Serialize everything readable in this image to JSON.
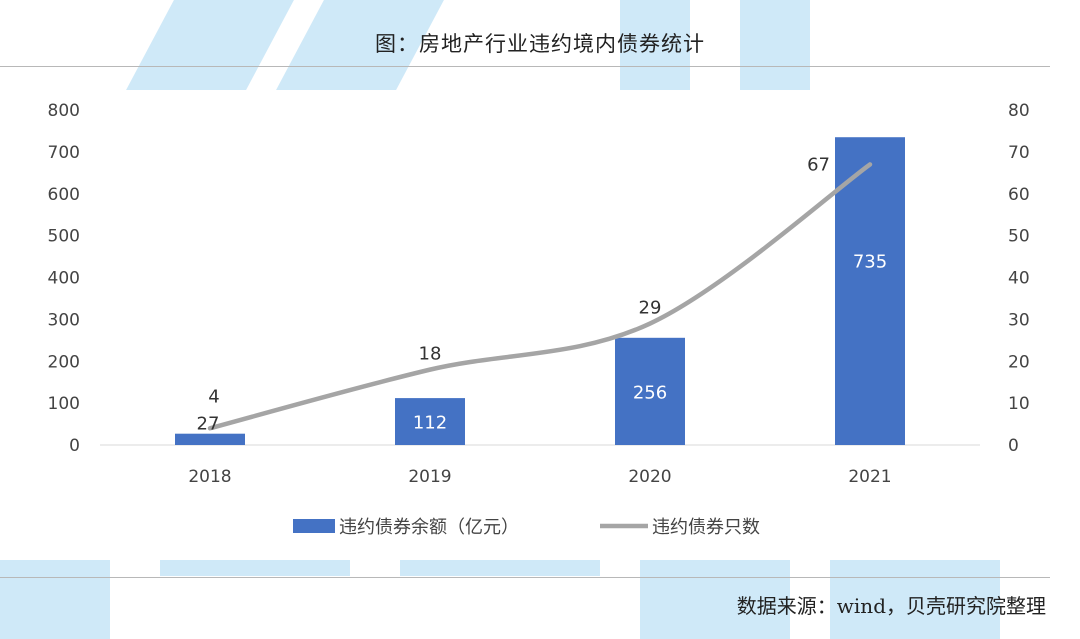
{
  "title": "图：房地产行业违约境内债券统计",
  "source": "数据来源：wind，贝壳研究院整理",
  "colors": {
    "bar": "#4472c4",
    "line": "#a5a5a5",
    "watermark": "#cfe9f8"
  },
  "chart_data": {
    "type": "bar",
    "title": "图：房地产行业违约境内债券统计",
    "categories": [
      "2018",
      "2019",
      "2020",
      "2021"
    ],
    "series": [
      {
        "name": "违约债券余额（亿元）",
        "type": "bar",
        "axis": "left",
        "values": [
          27,
          112,
          256,
          735
        ]
      },
      {
        "name": "违约债券只数",
        "type": "line",
        "axis": "right",
        "values": [
          4,
          18,
          29,
          67
        ]
      }
    ],
    "y_left": {
      "range": [
        0,
        800
      ],
      "ticks": [
        "0",
        "100",
        "200",
        "300",
        "400",
        "500",
        "600",
        "700",
        "800"
      ]
    },
    "y_right": {
      "range": [
        0,
        80
      ],
      "ticks": [
        "0",
        "10",
        "20",
        "30",
        "40",
        "50",
        "60",
        "70",
        "80"
      ]
    },
    "legend": "bottom",
    "grid": false
  }
}
